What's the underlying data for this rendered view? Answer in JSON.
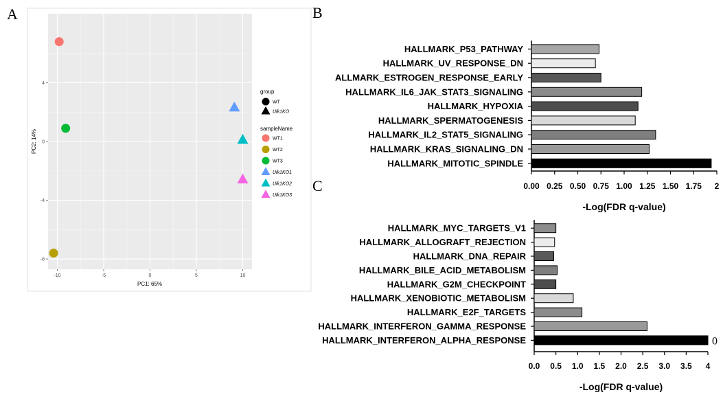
{
  "panels": {
    "a": "A",
    "b": "B",
    "c": "C"
  },
  "chart_data": [
    {
      "id": "A",
      "type": "scatter",
      "xlabel": "PC1: 65%",
      "ylabel": "PC2: 14%",
      "xlim": [
        -11,
        11
      ],
      "ylim": [
        -8.7,
        8.7
      ],
      "xticks": [
        -10,
        -5,
        0,
        5,
        10
      ],
      "yticks": [
        -8,
        -4,
        0,
        4
      ],
      "grid": true,
      "background": "#ebebeb",
      "legend": {
        "placement": "right",
        "group_title": "group",
        "groups": [
          {
            "label": "WT",
            "shape": "circle"
          },
          {
            "label": "Ulk1KO",
            "shape": "triangle"
          }
        ],
        "sample_title": "sampleName"
      },
      "points": [
        {
          "name": "WT1",
          "x": -9.8,
          "y": 6.8,
          "shape": "circle",
          "color": "#f8766d"
        },
        {
          "name": "WT2",
          "x": -10.4,
          "y": -7.6,
          "shape": "circle",
          "color": "#b79f00"
        },
        {
          "name": "WT3",
          "x": -9.1,
          "y": 0.9,
          "shape": "circle",
          "color": "#00ba38"
        },
        {
          "name": "Ulk1KO1",
          "x": 9.1,
          "y": 2.3,
          "shape": "triangle",
          "color": "#619cff"
        },
        {
          "name": "Ulk1KO2",
          "x": 10.0,
          "y": 0.1,
          "shape": "triangle",
          "color": "#00bfc4"
        },
        {
          "name": "Ulk1KO3",
          "x": 10.0,
          "y": -2.6,
          "shape": "triangle",
          "color": "#f564e3"
        }
      ]
    },
    {
      "id": "B",
      "type": "bar",
      "orientation": "horizontal",
      "xlabel": "-Log(FDR q-value)",
      "xlim": [
        0,
        2
      ],
      "xticks": [
        "0.00",
        "0.25",
        "0.50",
        "0.75",
        "1.00",
        "1.25",
        "1.50",
        "1.75",
        "2"
      ],
      "categories": [
        "HALLMARK_P53_PATHWAY",
        "HALLMARK_UV_RESPONSE_DN",
        "ALLMARK_ESTROGEN_RESPONSE_EARLY",
        "HALLMARK_IL6_JAK_STAT3_SIGNALING",
        "HALLMARK_HYPOXIA",
        "HALLMARK_SPERMATOGENESIS",
        "HALLMARK_IL2_STAT5_SIGNALING",
        "HALLMARK_KRAS_SIGNALING_DN",
        "HALLMARK_MITOTIC_SPINDLE"
      ],
      "values": [
        0.73,
        0.69,
        0.75,
        1.19,
        1.15,
        1.12,
        1.34,
        1.27,
        1.94
      ],
      "colors": [
        "#a6a6a6",
        "#ececec",
        "#595959",
        "#8c8c8c",
        "#4d4d4d",
        "#d9d9d9",
        "#7f7f7f",
        "#999999",
        "#000000"
      ]
    },
    {
      "id": "C",
      "type": "bar",
      "orientation": "horizontal",
      "xlabel": "-Log(FDR q-value)",
      "xlim": [
        0,
        4
      ],
      "xticks": [
        "0.0",
        "0.5",
        "1.0",
        "1.5",
        "2.0",
        "2.5",
        "3.0",
        "3.5",
        "4"
      ],
      "categories": [
        "HALLMARK_MYC_TARGETS_V1",
        "HALLMARK_ALLOGRAFT_REJECTION",
        "HALLMARK_DNA_REPAIR",
        "HALLMARK_BILE_ACID_METABOLISM",
        "HALLMARK_G2M_CHECKPOINT",
        "HALLMARK_XENOBIOTIC_METABOLISM",
        "HALLMARK_E2F_TARGETS",
        "HALLMARK_INTERFERON_GAMMA_RESPONSE",
        "HALLMARK_INTERFERON_ALPHA_RESPONSE"
      ],
      "values": [
        0.5,
        0.47,
        0.45,
        0.53,
        0.5,
        0.9,
        1.1,
        2.6,
        4.0
      ],
      "colors": [
        "#8c8c8c",
        "#ececec",
        "#595959",
        "#7f7f7f",
        "#4d4d4d",
        "#d9d9d9",
        "#8c8c8c",
        "#999999",
        "#000000"
      ],
      "annotation": "0"
    }
  ]
}
